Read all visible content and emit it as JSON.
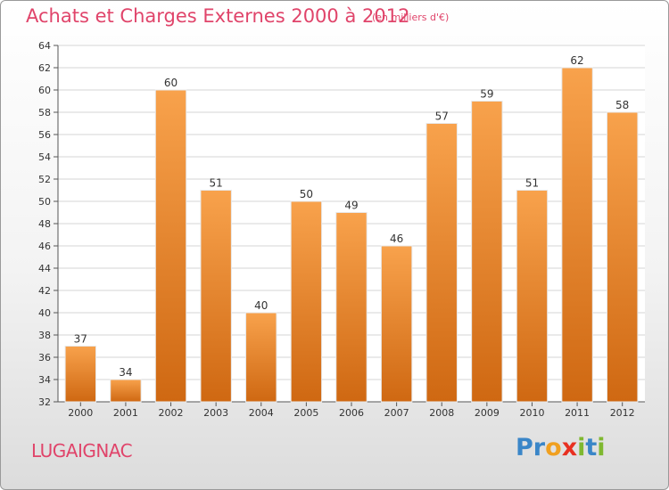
{
  "chart_data": {
    "type": "bar",
    "title": "Achats et Charges Externes 2000 à 2012",
    "subtitle": "(en milliers d'€)",
    "categories": [
      "2000",
      "2001",
      "2002",
      "2003",
      "2004",
      "2005",
      "2006",
      "2007",
      "2008",
      "2009",
      "2010",
      "2011",
      "2012"
    ],
    "values": [
      37,
      34,
      60,
      51,
      40,
      50,
      49,
      46,
      57,
      59,
      51,
      62,
      58
    ],
    "ylim": [
      32,
      64
    ],
    "yticks": [
      32,
      34,
      36,
      38,
      40,
      42,
      44,
      46,
      48,
      50,
      52,
      54,
      56,
      58,
      60,
      62,
      64
    ],
    "grid": true,
    "colors": {
      "bar_top": "#f8a24c",
      "bar_bottom": "#cf6812",
      "title": "#e0446a"
    }
  },
  "place": "LUGAIGNAC",
  "logo": {
    "letters": [
      "P",
      "r",
      "o",
      "x",
      "i",
      "t",
      "i"
    ],
    "colors": [
      "#3a86c8",
      "#3a86c8",
      "#f0a020",
      "#e83020",
      "#7fb830",
      "#3a86c8",
      "#7fb830"
    ]
  }
}
